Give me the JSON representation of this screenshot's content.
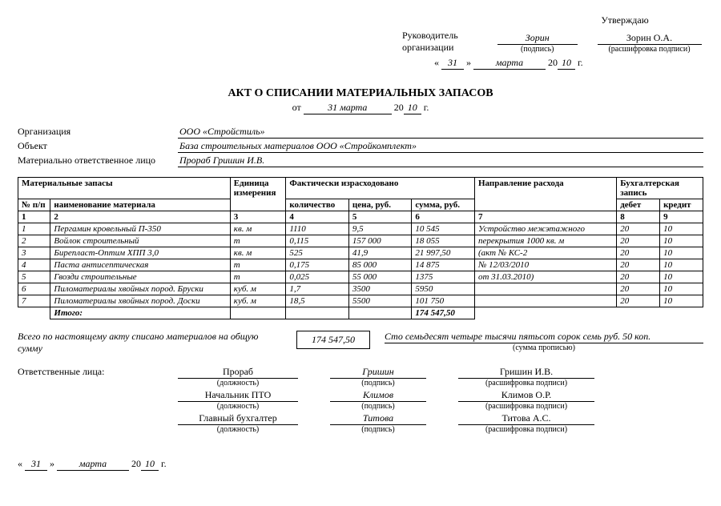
{
  "approval": {
    "approve_word": "Утверждаю",
    "leader_line1": "Руководитель",
    "leader_line2": "организации",
    "signature": "Зорин",
    "sig_label": "(подпись)",
    "name": "Зорин О.А.",
    "name_label": "(расшифровка подписи)",
    "day": "31",
    "month": "марта",
    "year_prefix": "20",
    "year": "10",
    "year_suffix": "г.",
    "q1": "«",
    "q2": "»"
  },
  "title": "АКТ О СПИСАНИИ МАТЕРИАЛЬНЫХ ЗАПАСОВ",
  "title_date": {
    "from": "от",
    "day_month": "31 марта",
    "year_prefix": "20",
    "year": "10",
    "year_suffix": "г."
  },
  "org": {
    "label1": "Организация",
    "val1": "ООО «Стройстиль»",
    "label2": "Объект",
    "val2": "База строительных материалов ООО «Стройкомплект»",
    "label3": "Материально ответственное лицо",
    "val3": "Прораб Гришин И.В."
  },
  "table": {
    "h_materials": "Материальные запасы",
    "h_num": "№ п/п",
    "h_name": "наименование материала",
    "h_unit": "Единица измерения",
    "h_fact": "Фактически израсходовано",
    "h_qty": "количество",
    "h_price": "цена, руб.",
    "h_sum": "сумма, руб.",
    "h_dir": "Направление расхода",
    "h_acc": "Бухгалтерская запись",
    "h_debit": "дебет",
    "h_credit": "кредит",
    "n1": "1",
    "n2": "2",
    "n3": "3",
    "n4": "4",
    "n5": "5",
    "n6": "6",
    "n7": "7",
    "n8": "8",
    "n9": "9",
    "rows": [
      {
        "num": "1",
        "name": "Пергамин кровельный П-350",
        "unit": "кв. м",
        "qty": "1110",
        "price": "9,5",
        "sum": "10 545",
        "dir": "Устройство межэтажного",
        "deb": "20",
        "cred": "10"
      },
      {
        "num": "2",
        "name": "Войлок строительный",
        "unit": "т",
        "qty": "0,115",
        "price": "157 000",
        "sum": "18 055",
        "dir": "перекрытия 1000 кв. м",
        "deb": "20",
        "cred": "10"
      },
      {
        "num": "3",
        "name": "Бирепласт-Оптим ХПП 3,0",
        "unit": "кв. м",
        "qty": "525",
        "price": "41,9",
        "sum": "21 997,50",
        "dir": "(акт № КС-2",
        "deb": "20",
        "cred": "10"
      },
      {
        "num": "4",
        "name": "Паста антисептическая",
        "unit": "т",
        "qty": "0,175",
        "price": "85 000",
        "sum": "14 875",
        "dir": "№ 12/03/2010",
        "deb": "20",
        "cred": "10"
      },
      {
        "num": "5",
        "name": "Гвозди строительные",
        "unit": "т",
        "qty": "0,025",
        "price": "55 000",
        "sum": "1375",
        "dir": "от 31.03.2010)",
        "deb": "20",
        "cred": "10"
      },
      {
        "num": "6",
        "name": "Пиломатериалы хвойных пород. Бруски",
        "unit": "куб. м",
        "qty": "1,7",
        "price": "3500",
        "sum": "5950",
        "dir": "",
        "deb": "20",
        "cred": "10"
      },
      {
        "num": "7",
        "name": "Пиломатериалы хвойных пород. Доски",
        "unit": "куб. м",
        "qty": "18,5",
        "price": "5500",
        "sum": "101 750",
        "dir": "",
        "deb": "20",
        "cred": "10"
      }
    ],
    "total_label": "Итого:",
    "total_sum": "174 547,50"
  },
  "summary": {
    "text": "Всего по настоящему акту списано материалов на общую сумму",
    "amount": "174 547,50",
    "words": "Сто семьдесят четыре тысячи пятьсот сорок семь руб. 50 коп.",
    "words_label": "(сумма прописью)"
  },
  "signers": {
    "label": "Ответственные лица:",
    "pos_label": "(должность)",
    "sig_label": "(подпись)",
    "name_label": "(расшифровка подписи)",
    "rows": [
      {
        "pos": "Прораб",
        "sig": "Гришин",
        "name": "Гришин И.В."
      },
      {
        "pos": "Начальник ПТО",
        "sig": "Климов",
        "name": "Климов О.Р."
      },
      {
        "pos": "Главный бухгалтер",
        "sig": "Титова",
        "name": "Титова А.С."
      }
    ]
  },
  "bottom_date": {
    "q1": "«",
    "day": "31",
    "q2": "»",
    "month": "марта",
    "year_prefix": "20",
    "year": "10",
    "year_suffix": "г."
  }
}
